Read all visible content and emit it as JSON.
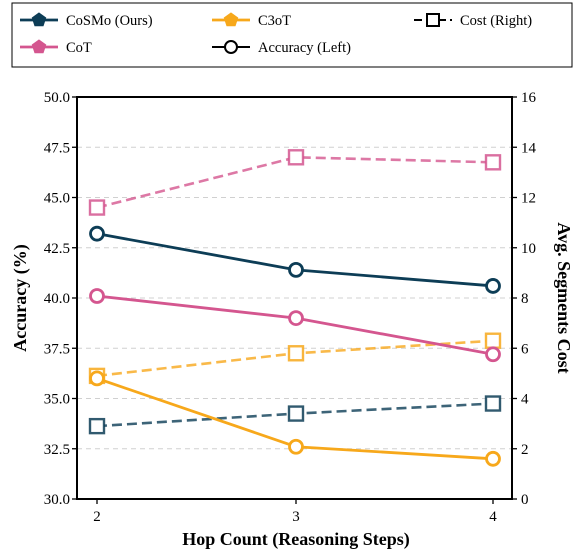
{
  "chart_data": {
    "type": "line",
    "categories": [
      "2",
      "3",
      "4"
    ],
    "x": [
      2,
      3,
      4
    ],
    "xlabel": "Hop Count (Reasoning Steps)",
    "ylabel_left": "Accuracy (%)",
    "ylabel_right": "Avg. Segments Cost",
    "ylim_left": [
      30.0,
      50.0
    ],
    "ylim_right": [
      0,
      16
    ],
    "yticks_left": [
      "30.0",
      "32.5",
      "35.0",
      "37.5",
      "40.0",
      "42.5",
      "45.0",
      "47.5",
      "50.0"
    ],
    "yticks_right": [
      "0",
      "2",
      "4",
      "6",
      "8",
      "10",
      "12",
      "14",
      "16"
    ],
    "grid": "horizontal dashed (left axis)",
    "legend_position": "top",
    "series": [
      {
        "name": "CoSMo (Ours)",
        "color": "#0d3d56",
        "accuracy": [
          43.2,
          41.4,
          40.6
        ],
        "cost": [
          2.9,
          3.4,
          3.8
        ]
      },
      {
        "name": "CoT",
        "color": "#d4568f",
        "accuracy": [
          40.1,
          39.0,
          37.2
        ],
        "cost": [
          11.6,
          13.6,
          13.4
        ]
      },
      {
        "name": "C3oT",
        "color": "#f7a81b",
        "accuracy": [
          36.0,
          32.6,
          32.0
        ],
        "cost": [
          4.9,
          5.8,
          6.3
        ]
      }
    ],
    "legend": [
      {
        "label": "CoSMo (Ours)",
        "kind": "series",
        "series": 0
      },
      {
        "label": "C3oT",
        "kind": "series",
        "series": 2
      },
      {
        "label": "Cost (Right)",
        "kind": "cost"
      },
      {
        "label": "CoT",
        "kind": "series",
        "series": 1
      },
      {
        "label": "Accuracy (Left)",
        "kind": "accuracy"
      }
    ]
  }
}
